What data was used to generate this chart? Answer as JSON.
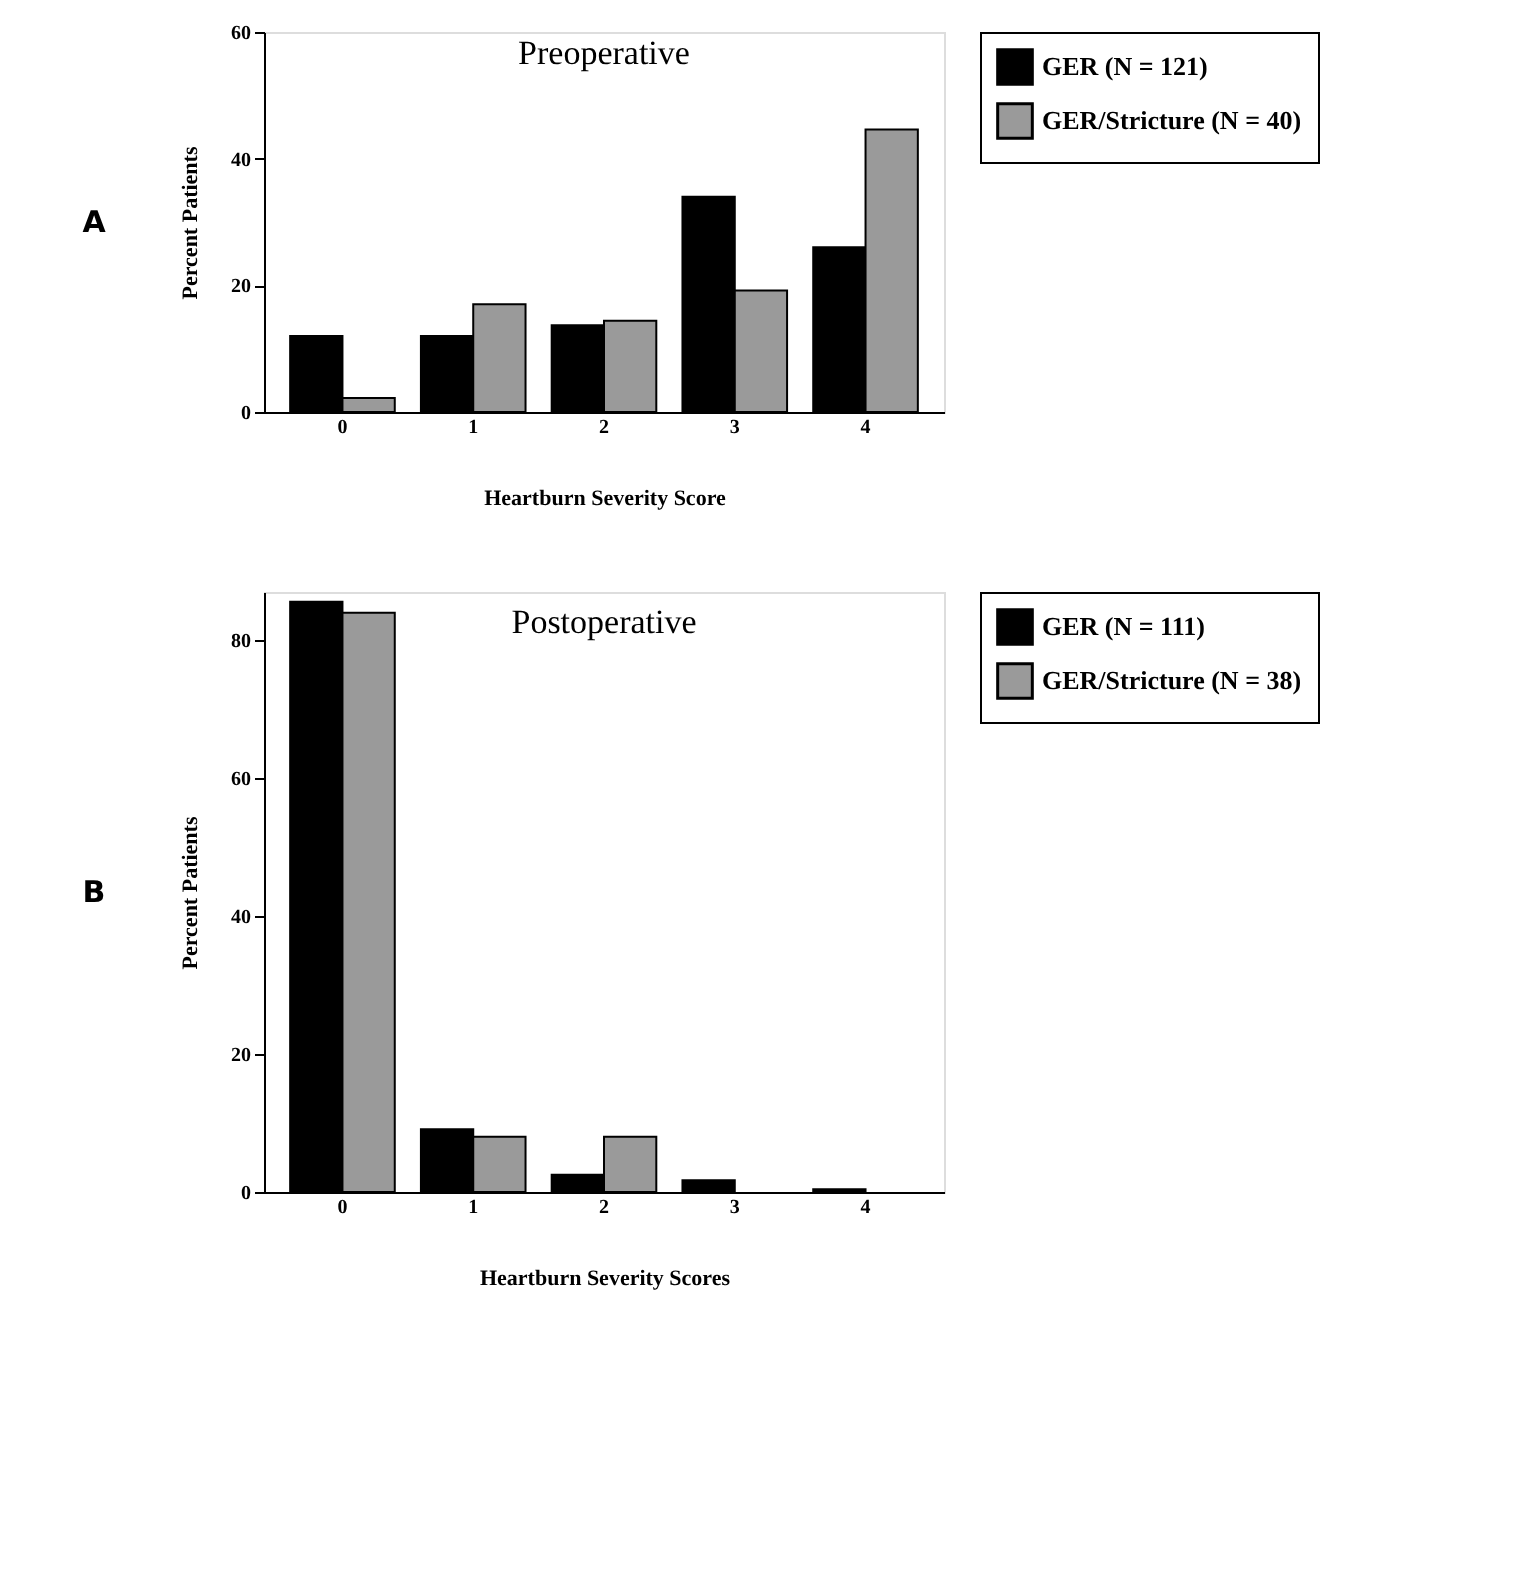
{
  "chart_data": [
    {
      "type": "bar",
      "title": "Preoperative",
      "xlabel": "Heartburn Severity Score",
      "ylabel": "Percent Patients",
      "annotations": [
        "A"
      ],
      "categories": [
        "0",
        "1",
        "2",
        "3",
        "4"
      ],
      "series": [
        {
          "name": "GER (N = 121)",
          "color": "#000000",
          "values": [
            12,
            12,
            13.7,
            34,
            26
          ]
        },
        {
          "name": "GER/Stricture (N = 40)",
          "color": "#9a9a9a",
          "values": [
            2.2,
            17,
            14.4,
            19.2,
            44.6
          ]
        }
      ],
      "ylim": [
        0,
        60
      ],
      "yticks": [
        0,
        20,
        40,
        60
      ],
      "grid": false,
      "legend": "right"
    },
    {
      "type": "bar",
      "title": "Postoperative",
      "xlabel": "Heartburn Severity Scores",
      "ylabel": "Percent Patients",
      "annotations": [
        "B"
      ],
      "categories": [
        "0",
        "1",
        "2",
        "3",
        "4"
      ],
      "series": [
        {
          "name": "GER (N = 111)",
          "color": "#000000",
          "values": [
            85.6,
            9.1,
            2.5,
            1.7,
            0.4
          ]
        },
        {
          "name": "GER/Stricture (N = 38)",
          "color": "#9a9a9a",
          "values": [
            84,
            8,
            8,
            0,
            0
          ]
        }
      ],
      "ylim": [
        0,
        87
      ],
      "yticks": [
        0,
        20,
        40,
        60,
        80
      ],
      "grid": false,
      "legend": "right"
    }
  ]
}
